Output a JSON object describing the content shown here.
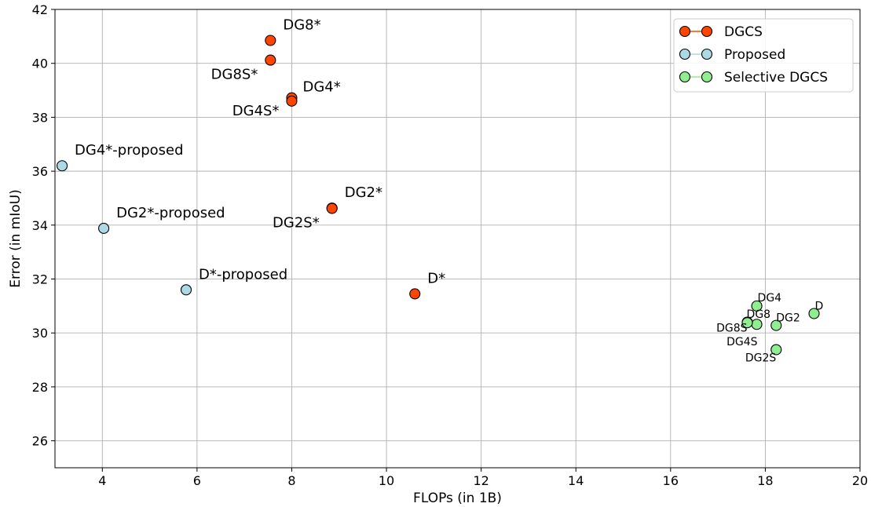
{
  "chart_data": {
    "type": "scatter",
    "title": "",
    "xlabel": "FLOPs  (in 1B)",
    "ylabel": "Error  (in mIoU)",
    "xlim": [
      3,
      20
    ],
    "ylim": [
      25,
      42
    ],
    "xticks": [
      4,
      6,
      8,
      10,
      12,
      14,
      16,
      18,
      20
    ],
    "yticks": [
      26,
      28,
      30,
      32,
      34,
      36,
      38,
      40,
      42
    ],
    "grid": true,
    "legend_position": "top-right",
    "series": [
      {
        "name": "DGCS",
        "color": "#ff4500",
        "points": [
          {
            "x": 7.55,
            "y": 40.85,
            "label": "DG8*"
          },
          {
            "x": 7.55,
            "y": 40.12,
            "label": "DG8S*"
          },
          {
            "x": 8.0,
            "y": 38.72,
            "label": "DG4*"
          },
          {
            "x": 8.0,
            "y": 38.6,
            "label": "DG4S*"
          },
          {
            "x": 8.85,
            "y": 34.63,
            "label": "DG2*"
          },
          {
            "x": 8.85,
            "y": 34.62,
            "label": "DG2S*"
          },
          {
            "x": 10.6,
            "y": 31.45,
            "label": "D*"
          }
        ]
      },
      {
        "name": "Proposed",
        "color": "#add8e6",
        "points": [
          {
            "x": 3.15,
            "y": 36.2,
            "label": "DG4*-proposed"
          },
          {
            "x": 4.03,
            "y": 33.88,
            "label": "DG2*-proposed"
          },
          {
            "x": 5.77,
            "y": 31.6,
            "label": "D*-proposed"
          }
        ]
      },
      {
        "name": "Selective DGCS",
        "color": "#90ee90",
        "points": [
          {
            "x": 17.82,
            "y": 31.0,
            "label": "DG4"
          },
          {
            "x": 19.03,
            "y": 30.72,
            "label": "D"
          },
          {
            "x": 17.82,
            "y": 30.32,
            "label": "DG8"
          },
          {
            "x": 18.23,
            "y": 30.28,
            "label": "DG2"
          },
          {
            "x": 17.62,
            "y": 30.4,
            "label": "DG8S"
          },
          {
            "x": 17.62,
            "y": 30.38,
            "label": "DG4S"
          },
          {
            "x": 18.23,
            "y": 29.38,
            "label": "DG2S"
          }
        ]
      }
    ]
  }
}
